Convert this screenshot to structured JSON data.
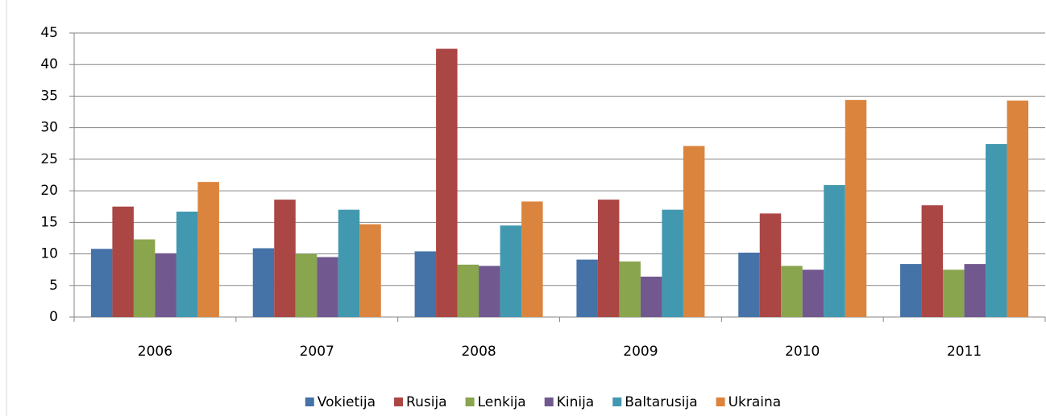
{
  "chart_data": {
    "type": "bar",
    "categories": [
      "2006",
      "2007",
      "2008",
      "2009",
      "2010",
      "2011"
    ],
    "series": [
      {
        "name": "Vokietija",
        "color": "#4572a7",
        "values": [
          10.8,
          10.9,
          10.4,
          9.1,
          10.2,
          8.4
        ]
      },
      {
        "name": "Rusija",
        "color": "#aa4643",
        "values": [
          17.5,
          18.6,
          42.5,
          18.6,
          16.4,
          17.7
        ]
      },
      {
        "name": "Lenkija",
        "color": "#89a54e",
        "values": [
          12.3,
          10.0,
          8.3,
          8.8,
          8.1,
          7.5
        ]
      },
      {
        "name": "Kinija",
        "color": "#71588f",
        "values": [
          10.1,
          9.5,
          8.1,
          6.4,
          7.5,
          8.4
        ]
      },
      {
        "name": "Baltarusija",
        "color": "#4198af",
        "values": [
          16.7,
          17.0,
          14.5,
          17.0,
          20.9,
          27.4
        ]
      },
      {
        "name": "Ukraina",
        "color": "#db843d",
        "values": [
          21.4,
          14.7,
          18.3,
          27.1,
          34.4,
          34.3
        ]
      }
    ],
    "ylim": [
      0,
      45
    ],
    "yticks": [
      0,
      5,
      10,
      15,
      20,
      25,
      30,
      35,
      40,
      45
    ],
    "grid": true,
    "legend": "bottom"
  }
}
